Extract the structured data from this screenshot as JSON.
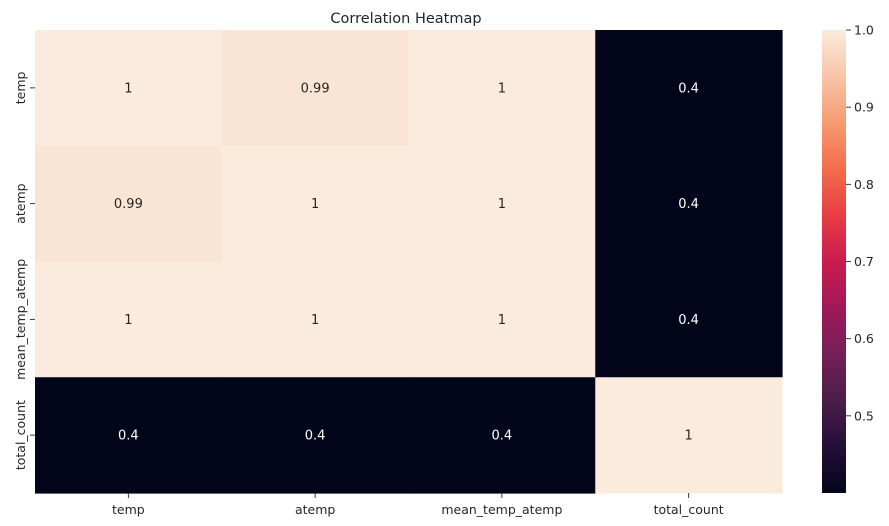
{
  "chart_data": {
    "type": "heatmap",
    "title": "Correlation Heatmap",
    "xlabel": "",
    "ylabel": "",
    "x_categories": [
      "temp",
      "atemp",
      "mean_temp_atemp",
      "total_count"
    ],
    "y_categories": [
      "temp",
      "atemp",
      "mean_temp_atemp",
      "total_count"
    ],
    "values": [
      [
        1.0,
        0.99,
        1.0,
        0.4
      ],
      [
        0.99,
        1.0,
        1.0,
        0.4
      ],
      [
        1.0,
        1.0,
        1.0,
        0.4
      ],
      [
        0.4,
        0.4,
        0.4,
        1.0
      ]
    ],
    "annotations": [
      [
        "1",
        "0.99",
        "1",
        "0.4"
      ],
      [
        "0.99",
        "1",
        "1",
        "0.4"
      ],
      [
        "1",
        "1",
        "1",
        "0.4"
      ],
      [
        "0.4",
        "0.4",
        "0.4",
        "1"
      ]
    ],
    "colormap": "rocket",
    "vmin": 0.4,
    "vmax": 1.0,
    "colorbar_ticks": [
      0.5,
      0.6,
      0.7,
      0.8,
      0.9,
      1.0
    ],
    "colorbar_tick_labels": [
      "0.5",
      "0.6",
      "0.7",
      "0.8",
      "0.9",
      "1.0"
    ],
    "grid": false,
    "legend": "colorbar-right"
  }
}
